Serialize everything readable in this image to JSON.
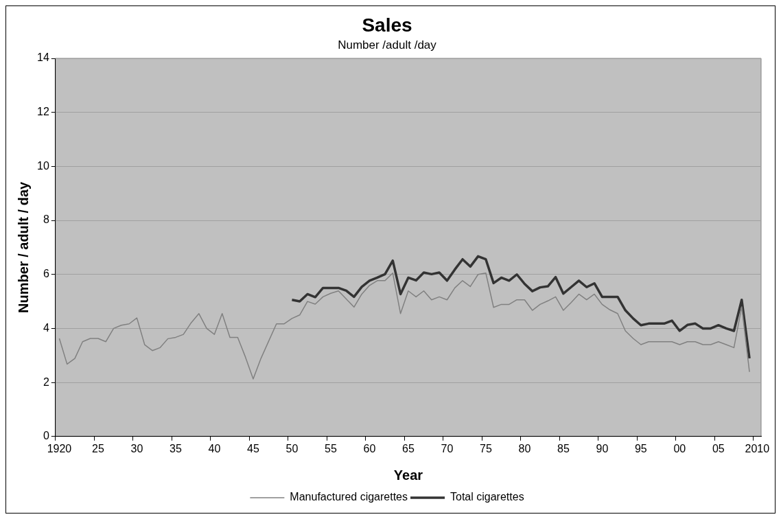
{
  "chart_data": {
    "type": "line",
    "title": "Sales",
    "subtitle": "Number /adult /day",
    "xlabel": "Year",
    "ylabel": "Number / adult / day",
    "categories": [
      "1920",
      null,
      null,
      null,
      null,
      "25",
      null,
      null,
      null,
      null,
      "30",
      null,
      null,
      null,
      null,
      "35",
      null,
      null,
      null,
      null,
      "40",
      null,
      null,
      null,
      null,
      "45",
      null,
      null,
      null,
      null,
      "50",
      null,
      null,
      null,
      null,
      "55",
      null,
      null,
      null,
      null,
      "60",
      null,
      null,
      null,
      null,
      "65",
      null,
      null,
      null,
      null,
      "70",
      null,
      null,
      null,
      null,
      "75",
      null,
      null,
      null,
      null,
      "80",
      null,
      null,
      null,
      null,
      "85",
      null,
      null,
      null,
      null,
      "90",
      null,
      null,
      null,
      null,
      "95",
      null,
      null,
      null,
      null,
      "00",
      null,
      null,
      null,
      null,
      "05",
      null,
      null,
      null,
      null,
      "2010"
    ],
    "series": [
      {
        "name": "Manufactured cigarettes",
        "color": "#808080",
        "values": [
          3.63,
          2.68,
          2.89,
          3.51,
          3.63,
          3.63,
          3.51,
          4.0,
          4.12,
          4.17,
          4.39,
          3.4,
          3.18,
          3.29,
          3.62,
          3.67,
          3.78,
          4.21,
          4.55,
          4.0,
          3.78,
          4.55,
          3.67,
          3.67,
          2.94,
          2.13,
          2.89,
          3.53,
          4.17,
          4.17,
          4.37,
          4.5,
          5.0,
          4.9,
          5.17,
          5.3,
          5.39,
          5.09,
          4.79,
          5.27,
          5.59,
          5.77,
          5.77,
          6.05,
          4.55,
          5.39,
          5.17,
          5.39,
          5.06,
          5.17,
          5.06,
          5.5,
          5.77,
          5.55,
          6.0,
          6.05,
          4.78,
          4.89,
          4.89,
          5.06,
          5.06,
          4.67,
          4.89,
          5.02,
          5.17,
          4.67,
          4.96,
          5.27,
          5.06,
          5.27,
          4.89,
          4.69,
          4.55,
          3.91,
          3.63,
          3.4,
          3.51,
          3.51,
          3.51,
          3.51,
          3.4,
          3.51,
          3.51,
          3.4,
          3.4,
          3.51,
          3.4,
          3.29,
          4.8,
          2.39,
          null
        ]
      },
      {
        "name": "Total cigarettes",
        "color": "#333333",
        "values": [
          null,
          null,
          null,
          null,
          null,
          null,
          null,
          null,
          null,
          null,
          null,
          null,
          null,
          null,
          null,
          null,
          null,
          null,
          null,
          null,
          null,
          null,
          null,
          null,
          null,
          null,
          null,
          null,
          null,
          null,
          5.06,
          5.0,
          5.27,
          5.16,
          5.5,
          5.5,
          5.5,
          5.4,
          5.17,
          5.54,
          5.77,
          5.88,
          6.01,
          6.51,
          5.27,
          5.88,
          5.78,
          6.07,
          6.01,
          6.07,
          5.77,
          6.18,
          6.56,
          6.29,
          6.67,
          6.56,
          5.68,
          5.88,
          5.77,
          6.0,
          5.65,
          5.38,
          5.52,
          5.56,
          5.9,
          5.29,
          5.53,
          5.77,
          5.53,
          5.67,
          5.17,
          5.17,
          5.17,
          4.67,
          4.37,
          4.12,
          4.18,
          4.18,
          4.18,
          4.29,
          3.91,
          4.13,
          4.18,
          4.0,
          4.0,
          4.12,
          4.0,
          3.91,
          5.06,
          2.89,
          null
        ]
      }
    ],
    "ylim": [
      0,
      14
    ],
    "yticks": [
      0,
      2,
      4,
      6,
      8,
      10,
      12,
      14
    ],
    "grid": "y",
    "legend": "bottom"
  }
}
